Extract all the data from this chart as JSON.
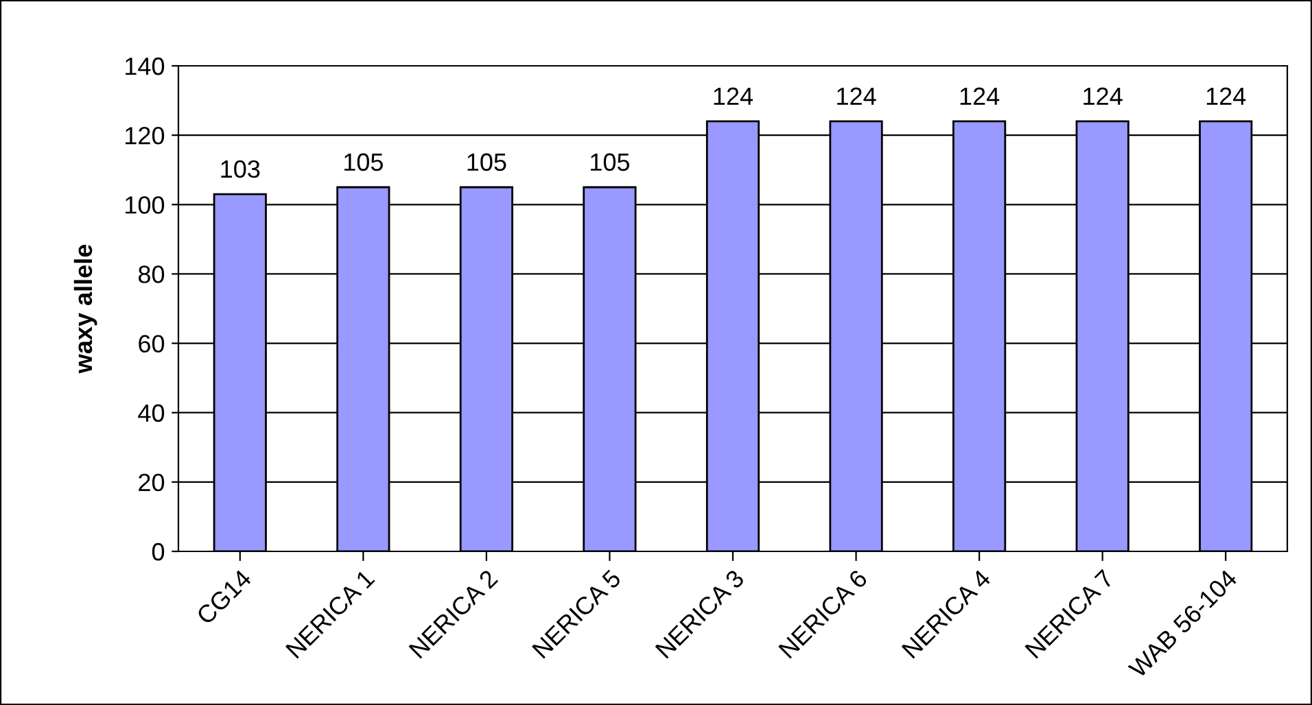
{
  "chart_data": {
    "type": "bar",
    "ylabel": "waxy allele",
    "categories": [
      "CG14",
      "NERICA 1",
      "NERICA 2",
      "NERICA 5",
      "NERICA 3",
      "NERICA 6",
      "NERICA 4",
      "NERICA 7",
      "WAB 56-104"
    ],
    "values": [
      103,
      105,
      105,
      105,
      124,
      124,
      124,
      124,
      124
    ],
    "color": "#9999ff",
    "ylim": [
      0,
      140
    ],
    "yticks": [
      0,
      20,
      40,
      60,
      80,
      100,
      120,
      140
    ],
    "grid": "y",
    "data_labels": true
  }
}
